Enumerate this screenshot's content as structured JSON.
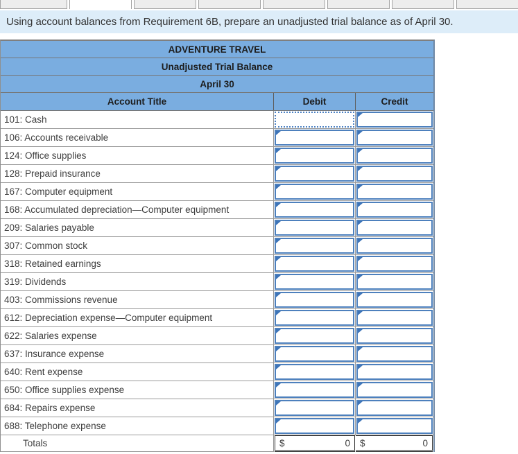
{
  "tab_bar": {
    "tab_count": 8,
    "active_index": 1
  },
  "banner": {
    "text": "Using account balances from Requirement 6B, prepare an unadjusted trial balance as of April 30."
  },
  "table": {
    "company": "ADVENTURE TRAVEL",
    "title": "Unadjusted Trial Balance",
    "date": "April 30",
    "columns": [
      "Account Title",
      "Debit",
      "Credit"
    ],
    "rows": [
      {
        "label": "101: Cash",
        "debit": "",
        "credit": ""
      },
      {
        "label": "106: Accounts receivable",
        "debit": "",
        "credit": ""
      },
      {
        "label": "124: Office supplies",
        "debit": "",
        "credit": ""
      },
      {
        "label": "128: Prepaid insurance",
        "debit": "",
        "credit": ""
      },
      {
        "label": "167: Computer equipment",
        "debit": "",
        "credit": ""
      },
      {
        "label": "168: Accumulated depreciation—Computer equipment",
        "debit": "",
        "credit": ""
      },
      {
        "label": "209: Salaries payable",
        "debit": "",
        "credit": ""
      },
      {
        "label": "307: Common stock",
        "debit": "",
        "credit": ""
      },
      {
        "label": "318: Retained earnings",
        "debit": "",
        "credit": ""
      },
      {
        "label": "319: Dividends",
        "debit": "",
        "credit": ""
      },
      {
        "label": "403: Commissions revenue",
        "debit": "",
        "credit": ""
      },
      {
        "label": "612: Depreciation expense—Computer equipment",
        "debit": "",
        "credit": ""
      },
      {
        "label": "622: Salaries expense",
        "debit": "",
        "credit": ""
      },
      {
        "label": "637: Insurance expense",
        "debit": "",
        "credit": ""
      },
      {
        "label": "640: Rent expense",
        "debit": "",
        "credit": ""
      },
      {
        "label": "650: Office supplies expense",
        "debit": "",
        "credit": ""
      },
      {
        "label": "684: Repairs expense",
        "debit": "",
        "credit": ""
      },
      {
        "label": "688: Telephone expense",
        "debit": "",
        "credit": ""
      }
    ],
    "focused_cell": {
      "row_index": 0,
      "column": "debit"
    },
    "totals": {
      "label": "Totals",
      "debit_currency": "$",
      "debit_amount": "0",
      "credit_currency": "$",
      "credit_amount": "0"
    }
  },
  "colors": {
    "header_blue": "#7aade0",
    "input_border_blue": "#4d80bd",
    "banner_bg": "#ddedf9"
  }
}
